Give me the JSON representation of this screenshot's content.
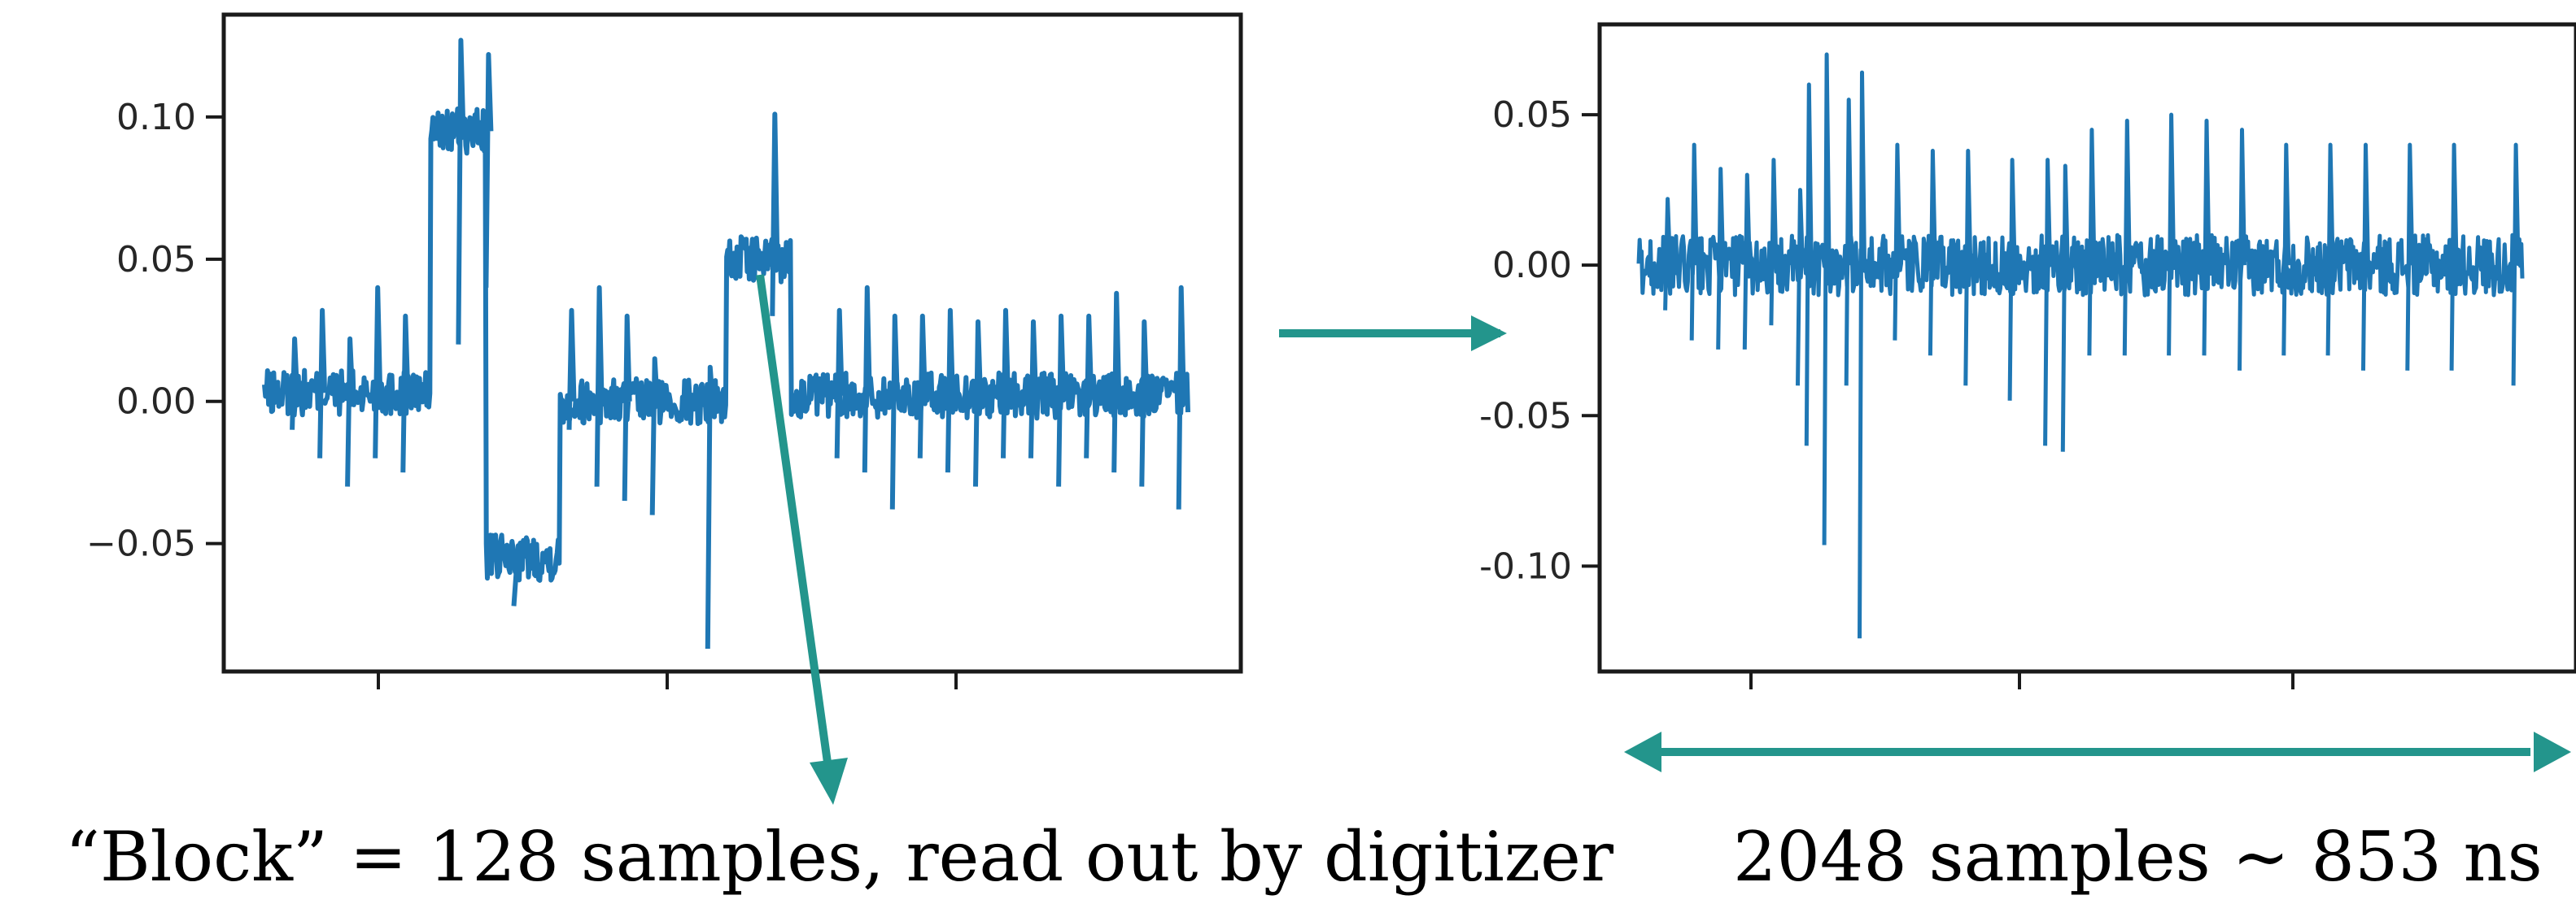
{
  "colors": {
    "series": "#1f77b4",
    "arrow": "#23958c",
    "axes": "#1a1a1a",
    "text": "#000000"
  },
  "chart_data": [
    {
      "type": "line",
      "title": "",
      "xlabel": "",
      "ylabel": "",
      "ylim": [
        -0.095,
        0.136
      ],
      "yticks": [
        -0.05,
        0.0,
        0.05,
        0.1
      ],
      "ytick_labels": [
        "−0.05",
        "0.00",
        "0.05",
        "0.10"
      ],
      "xticks_count": 3,
      "xtick_labels": [],
      "grid": false,
      "legend": "none",
      "samples": 512,
      "baseline_segments": [
        {
          "from": 0.0,
          "to": 0.18,
          "level": 0.003
        },
        {
          "from": 0.18,
          "to": 0.24,
          "level": 0.095
        },
        {
          "from": 0.24,
          "to": 0.32,
          "level": -0.055
        },
        {
          "from": 0.32,
          "to": 0.5,
          "level": 0.0
        },
        {
          "from": 0.5,
          "to": 0.57,
          "level": 0.05
        },
        {
          "from": 0.57,
          "to": 1.0,
          "level": 0.002
        }
      ],
      "noise_amplitude": 0.008,
      "spikes": [
        {
          "x": 0.03,
          "value": 0.022,
          "min": -0.01
        },
        {
          "x": 0.06,
          "value": 0.032,
          "min": -0.02
        },
        {
          "x": 0.09,
          "value": 0.022,
          "min": -0.03
        },
        {
          "x": 0.12,
          "value": 0.04,
          "min": -0.02
        },
        {
          "x": 0.15,
          "value": 0.03,
          "min": -0.025
        },
        {
          "x": 0.21,
          "value": 0.127,
          "min": 0.02
        },
        {
          "x": 0.24,
          "value": 0.122,
          "min": 0.04
        },
        {
          "x": 0.27,
          "value": -0.06,
          "min": -0.072
        },
        {
          "x": 0.33,
          "value": 0.032,
          "min": -0.01
        },
        {
          "x": 0.36,
          "value": 0.04,
          "min": -0.03
        },
        {
          "x": 0.39,
          "value": 0.03,
          "min": -0.035
        },
        {
          "x": 0.42,
          "value": 0.015,
          "min": -0.04
        },
        {
          "x": 0.48,
          "value": 0.012,
          "min": -0.087
        },
        {
          "x": 0.55,
          "value": 0.101,
          "min": 0.03
        },
        {
          "x": 0.62,
          "value": 0.032,
          "min": -0.02
        },
        {
          "x": 0.65,
          "value": 0.04,
          "min": -0.025
        },
        {
          "x": 0.68,
          "value": 0.03,
          "min": -0.038
        },
        {
          "x": 0.71,
          "value": 0.03,
          "min": -0.02
        },
        {
          "x": 0.74,
          "value": 0.032,
          "min": -0.025
        },
        {
          "x": 0.77,
          "value": 0.028,
          "min": -0.03
        },
        {
          "x": 0.8,
          "value": 0.032,
          "min": -0.02
        },
        {
          "x": 0.83,
          "value": 0.028,
          "min": -0.02
        },
        {
          "x": 0.86,
          "value": 0.03,
          "min": -0.03
        },
        {
          "x": 0.89,
          "value": 0.03,
          "min": -0.02
        },
        {
          "x": 0.92,
          "value": 0.038,
          "min": -0.025
        },
        {
          "x": 0.95,
          "value": 0.028,
          "min": -0.03
        },
        {
          "x": 0.99,
          "value": 0.04,
          "min": -0.038
        }
      ]
    },
    {
      "type": "line",
      "title": "",
      "xlabel": "",
      "ylabel": "",
      "ylim": [
        -0.135,
        0.08
      ],
      "yticks": [
        -0.1,
        -0.05,
        0.0,
        0.05
      ],
      "ytick_labels": [
        "-0.10",
        "-0.05",
        "0.00",
        "0.05"
      ],
      "xticks_count": 3,
      "xtick_labels": [],
      "grid": false,
      "legend": "none",
      "samples": 2048,
      "baseline_segments": [
        {
          "from": 0.0,
          "to": 1.0,
          "level": 0.0
        }
      ],
      "noise_amplitude": 0.01,
      "spikes": [
        {
          "x": 0.03,
          "value": 0.022,
          "min": -0.015
        },
        {
          "x": 0.06,
          "value": 0.04,
          "min": -0.025
        },
        {
          "x": 0.09,
          "value": 0.032,
          "min": -0.028
        },
        {
          "x": 0.12,
          "value": 0.03,
          "min": -0.028
        },
        {
          "x": 0.15,
          "value": 0.035,
          "min": -0.02
        },
        {
          "x": 0.18,
          "value": 0.025,
          "min": -0.04
        },
        {
          "x": 0.19,
          "value": 0.06,
          "min": -0.06
        },
        {
          "x": 0.21,
          "value": 0.07,
          "min": -0.093
        },
        {
          "x": 0.235,
          "value": 0.055,
          "min": -0.04
        },
        {
          "x": 0.25,
          "value": 0.064,
          "min": -0.124
        },
        {
          "x": 0.29,
          "value": 0.04,
          "min": -0.025
        },
        {
          "x": 0.33,
          "value": 0.038,
          "min": -0.03
        },
        {
          "x": 0.37,
          "value": 0.038,
          "min": -0.04
        },
        {
          "x": 0.42,
          "value": 0.035,
          "min": -0.045
        },
        {
          "x": 0.46,
          "value": 0.035,
          "min": -0.06
        },
        {
          "x": 0.48,
          "value": 0.033,
          "min": -0.062
        },
        {
          "x": 0.51,
          "value": 0.045,
          "min": -0.03
        },
        {
          "x": 0.55,
          "value": 0.048,
          "min": -0.03
        },
        {
          "x": 0.6,
          "value": 0.05,
          "min": -0.03
        },
        {
          "x": 0.64,
          "value": 0.048,
          "min": -0.03
        },
        {
          "x": 0.68,
          "value": 0.045,
          "min": -0.035
        },
        {
          "x": 0.73,
          "value": 0.04,
          "min": -0.03
        },
        {
          "x": 0.78,
          "value": 0.04,
          "min": -0.03
        },
        {
          "x": 0.82,
          "value": 0.04,
          "min": -0.035
        },
        {
          "x": 0.87,
          "value": 0.04,
          "min": -0.035
        },
        {
          "x": 0.92,
          "value": 0.04,
          "min": -0.035
        },
        {
          "x": 0.99,
          "value": 0.04,
          "min": -0.04
        }
      ]
    }
  ],
  "captions": {
    "block": "“Block” = 128 samples, read out by digitizer",
    "duration": "2048 samples ~ 853 ns"
  }
}
